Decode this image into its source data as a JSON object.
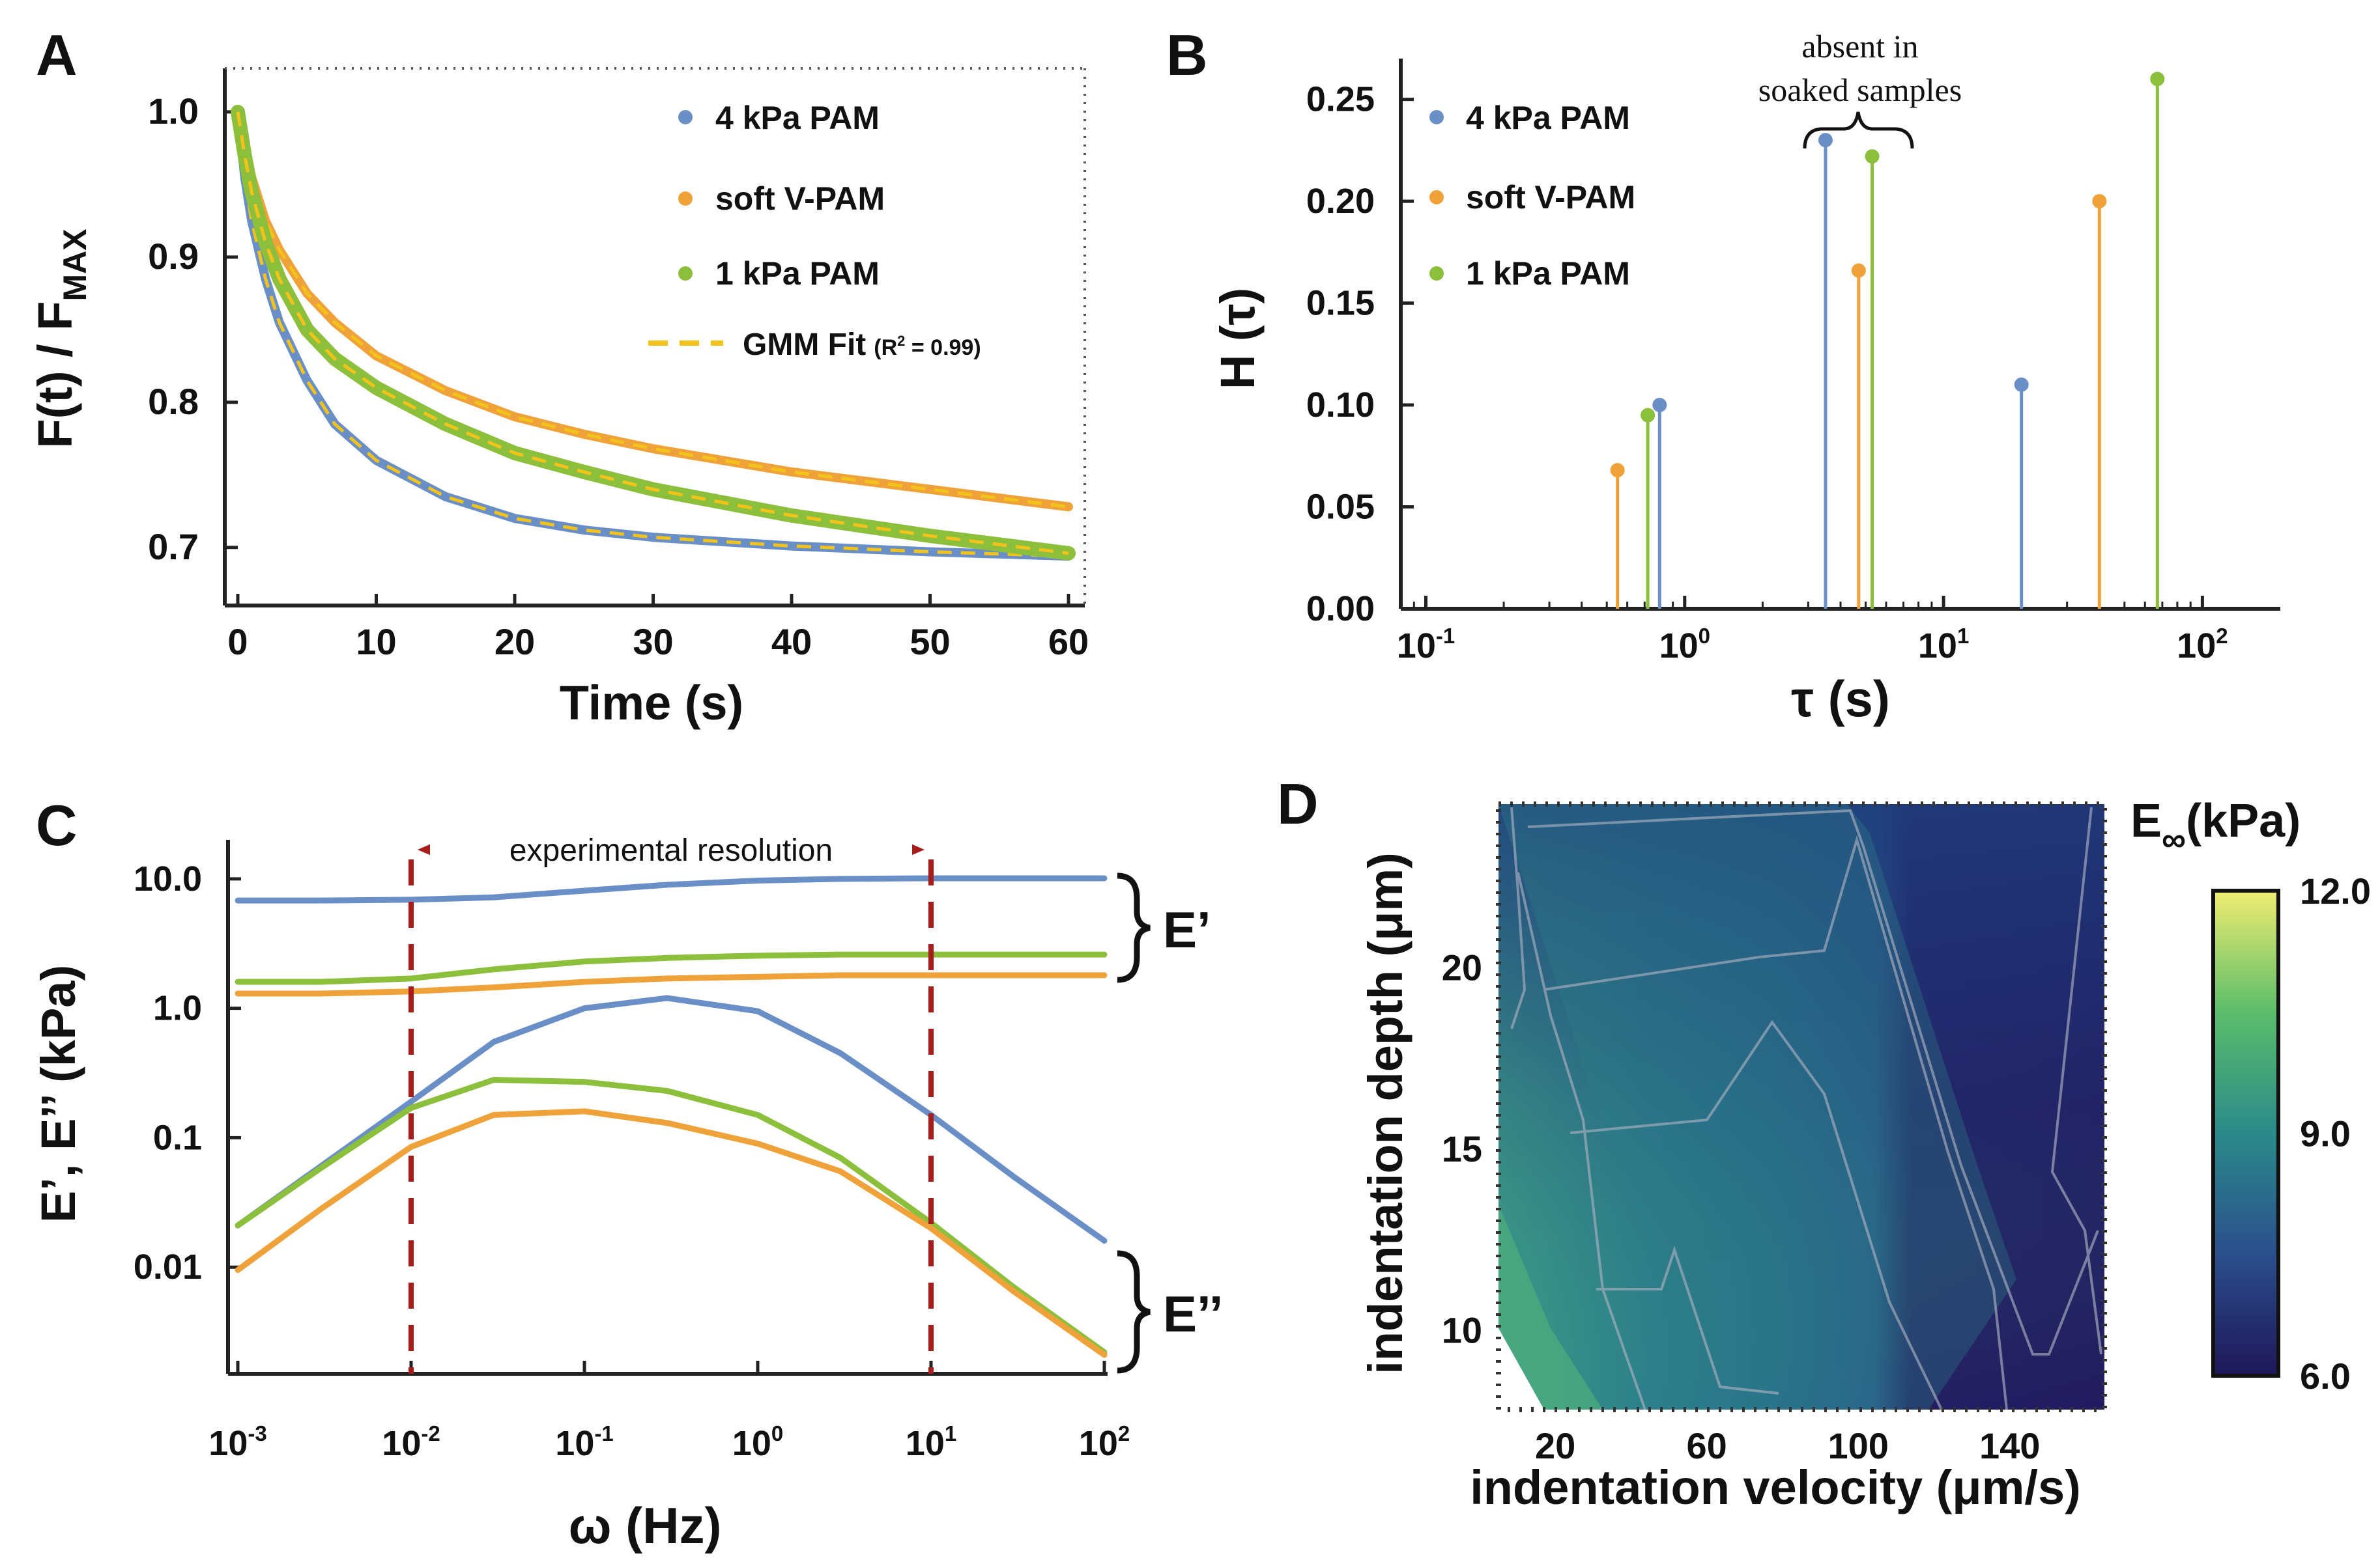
{
  "colors": {
    "blue": "#6a8fc7",
    "orange": "#f0a23a",
    "green": "#8bbf3c",
    "gmm": "#f2c31b",
    "red": "#a81c1c",
    "gray": "#8c8c8c"
  },
  "chart_data": [
    {
      "panel": "A",
      "type": "line",
      "panel_label": "A",
      "ylabel_main": "F(t) / F",
      "ylabel_sub": "MAX",
      "xlabel": "Time (s)",
      "xlim": [
        0,
        60
      ],
      "ylim": [
        0.66,
        1.03
      ],
      "xticks": [
        0,
        10,
        20,
        30,
        40,
        50,
        60
      ],
      "xtick_labels": [
        "0",
        "10",
        "20",
        "30",
        "40",
        "50",
        "60"
      ],
      "yticks": [
        0.7,
        0.8,
        0.9,
        1.0
      ],
      "ytick_labels": [
        "0.7",
        "0.8",
        "0.9",
        "1.0"
      ],
      "legend": {
        "l1": "4 kPa PAM",
        "l2": "soft V-PAM",
        "l3": "1 kPa PAM",
        "fit": "GMM Fit",
        "fit_r2": "(R",
        "fit_r2_sup": "2",
        "fit_r2_tail": " = 0.99)"
      },
      "series": [
        {
          "name": "4 kPa PAM",
          "color": "blue",
          "x": [
            0,
            0.5,
            1,
            2,
            3,
            5,
            7,
            10,
            15,
            20,
            25,
            30,
            40,
            50,
            60
          ],
          "y": [
            1.0,
            0.955,
            0.925,
            0.885,
            0.855,
            0.815,
            0.785,
            0.76,
            0.735,
            0.72,
            0.712,
            0.707,
            0.701,
            0.697,
            0.694
          ]
        },
        {
          "name": "soft V-PAM",
          "color": "orange",
          "x": [
            0,
            0.5,
            1,
            2,
            3,
            5,
            7,
            10,
            15,
            20,
            25,
            30,
            40,
            50,
            60
          ],
          "y": [
            1.0,
            0.975,
            0.955,
            0.925,
            0.905,
            0.875,
            0.855,
            0.832,
            0.808,
            0.79,
            0.778,
            0.768,
            0.752,
            0.74,
            0.728
          ]
        },
        {
          "name": "1 kPa PAM",
          "color": "green",
          "x": [
            0,
            0.5,
            1,
            2,
            3,
            5,
            7,
            10,
            15,
            20,
            25,
            30,
            40,
            50,
            60
          ],
          "y": [
            1.0,
            0.97,
            0.945,
            0.91,
            0.885,
            0.85,
            0.83,
            0.81,
            0.785,
            0.765,
            0.752,
            0.74,
            0.722,
            0.708,
            0.696
          ]
        }
      ]
    },
    {
      "panel": "B",
      "type": "stem",
      "panel_label": "B",
      "ylabel": "H (τ)",
      "xlabel": "τ (s)",
      "xscale": "log",
      "xlim": [
        0.08,
        200
      ],
      "ylim": [
        0,
        0.27
      ],
      "yticks": [
        0.0,
        0.05,
        0.1,
        0.15,
        0.2,
        0.25
      ],
      "ytick_labels": [
        "0.00",
        "0.05",
        "0.10",
        "0.15",
        "0.20",
        "0.25"
      ],
      "xtick_base": "10",
      "xtick_exps": [
        "-1",
        "0",
        "1",
        "2"
      ],
      "xtick_values": [
        0.1,
        1,
        10,
        100
      ],
      "annotation_l1": "absent in",
      "annotation_l2": "soaked samples",
      "legend": {
        "l1": "4 kPa PAM",
        "l2": "soft V-PAM",
        "l3": "1 kPa PAM"
      },
      "series": [
        {
          "name": "4 kPa PAM",
          "color": "blue",
          "tau": [
            0.8,
            3.5,
            20
          ],
          "h": [
            0.1,
            0.23,
            0.11
          ]
        },
        {
          "name": "soft V-PAM",
          "color": "orange",
          "tau": [
            0.55,
            4.7,
            40
          ],
          "h": [
            0.068,
            0.166,
            0.2
          ]
        },
        {
          "name": "1 kPa PAM",
          "color": "green",
          "tau": [
            0.72,
            5.3,
            67
          ],
          "h": [
            0.095,
            0.222,
            0.26
          ]
        }
      ]
    },
    {
      "panel": "C",
      "type": "line",
      "panel_label": "C",
      "ylabel": "E’, E’’ (kPa)",
      "xlabel": "ω (Hz)",
      "xscale": "log",
      "yscale": "log",
      "xlim": [
        0.001,
        100
      ],
      "ylim": [
        0.0015,
        20
      ],
      "xtick_base": "10",
      "xtick_exps": [
        "-3",
        "-2",
        "-1",
        "0",
        "1",
        "2"
      ],
      "xtick_values": [
        0.001,
        0.01,
        0.1,
        1,
        10,
        100
      ],
      "yticks": [
        0.01,
        0.1,
        1,
        10
      ],
      "ytick_labels": [
        "0.01",
        "0.1",
        "1.0",
        "10.0"
      ],
      "resolution_label": "experimental resolution",
      "resolution_range": [
        0.01,
        10
      ],
      "brace_upper": "E’",
      "brace_lower": "E’’",
      "series": [
        {
          "name": "4 kPa PAM E'",
          "color": "blue",
          "x": [
            0.001,
            0.003,
            0.01,
            0.03,
            0.1,
            0.3,
            1,
            3,
            10,
            30,
            100
          ],
          "y": [
            6.8,
            6.8,
            6.9,
            7.2,
            8.1,
            9.0,
            9.7,
            10.0,
            10.1,
            10.1,
            10.1
          ]
        },
        {
          "name": "1 kPa PAM E'",
          "color": "green",
          "x": [
            0.001,
            0.003,
            0.01,
            0.03,
            0.1,
            0.3,
            1,
            3,
            10,
            30,
            100
          ],
          "y": [
            1.6,
            1.6,
            1.7,
            2.0,
            2.3,
            2.45,
            2.55,
            2.6,
            2.6,
            2.6,
            2.6
          ]
        },
        {
          "name": "soft V-PAM E'",
          "color": "orange",
          "x": [
            0.001,
            0.003,
            0.01,
            0.03,
            0.1,
            0.3,
            1,
            3,
            10,
            30,
            100
          ],
          "y": [
            1.3,
            1.3,
            1.35,
            1.45,
            1.6,
            1.7,
            1.75,
            1.8,
            1.8,
            1.8,
            1.8
          ]
        },
        {
          "name": "4 kPa PAM E''",
          "color": "blue",
          "x": [
            0.001,
            0.003,
            0.01,
            0.03,
            0.1,
            0.3,
            1,
            3,
            10,
            30,
            100
          ],
          "y": [
            0.021,
            0.06,
            0.19,
            0.55,
            1.0,
            1.2,
            0.95,
            0.45,
            0.15,
            0.05,
            0.016
          ]
        },
        {
          "name": "1 kPa PAM E''",
          "color": "green",
          "x": [
            0.001,
            0.003,
            0.01,
            0.03,
            0.1,
            0.3,
            1,
            3,
            10,
            30,
            100
          ],
          "y": [
            0.021,
            0.058,
            0.17,
            0.28,
            0.27,
            0.23,
            0.15,
            0.07,
            0.022,
            0.007,
            0.0022
          ]
        },
        {
          "name": "soft V-PAM E''",
          "color": "orange",
          "x": [
            0.001,
            0.003,
            0.01,
            0.03,
            0.1,
            0.3,
            1,
            3,
            10,
            30,
            100
          ],
          "y": [
            0.0095,
            0.028,
            0.085,
            0.15,
            0.16,
            0.13,
            0.09,
            0.055,
            0.02,
            0.0065,
            0.0021
          ]
        }
      ]
    },
    {
      "panel": "D",
      "type": "heatmap",
      "panel_label": "D",
      "ylabel": "indentation depth (μm)",
      "xlabel": "indentation velocity (μm/s)",
      "xlim": [
        5,
        165
      ],
      "ylim": [
        7.8,
        24.5
      ],
      "xticks": [
        20,
        60,
        100,
        140
      ],
      "xtick_labels": [
        "20",
        "60",
        "100",
        "140"
      ],
      "yticks": [
        10,
        15,
        20
      ],
      "ytick_labels": [
        "10",
        "15",
        "20"
      ],
      "colorbar_title": "E",
      "colorbar_sub": "∞",
      "colorbar_unit": "(kPa)",
      "colorbar_range": [
        6.0,
        12.0
      ],
      "colorbar_ticks": [
        6.0,
        9.0,
        12.0
      ],
      "colorbar_tick_labels": [
        "6.0",
        "9.0",
        "12.0"
      ]
    }
  ]
}
